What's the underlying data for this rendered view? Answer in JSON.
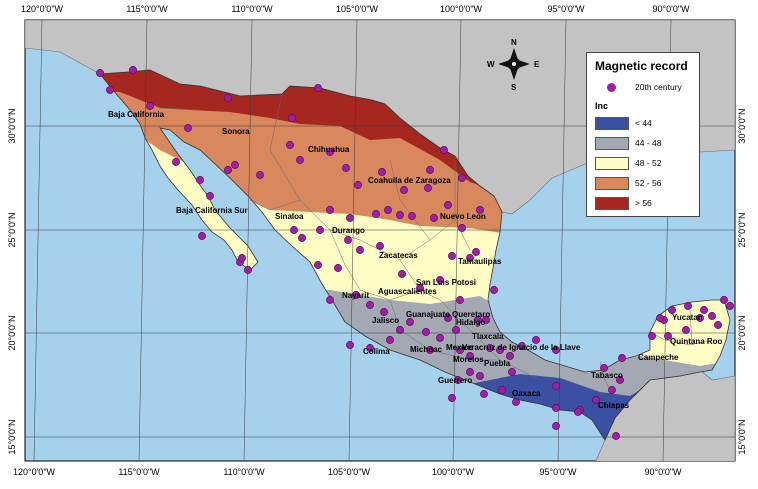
{
  "map": {
    "colors": {
      "ocean": "#a6d1ec",
      "land_other": "#c3c3c3",
      "border_line": "#6a6a6a",
      "grid_line": "#3a3a3a",
      "record_dot": "#a11fa6",
      "record_dot_outline": "#5b0d60"
    },
    "x_ticks": [
      "120°0'0\"W",
      "115°0'0\"W",
      "110°0'0\"W",
      "105°0'0\"W",
      "100°0'0\"W",
      "95°0'0\"W",
      "90°0'0\"W"
    ],
    "y_ticks": [
      "30°0'0\"N",
      "25°0'0\"N",
      "20°0'0\"N",
      "15°0'0\"N"
    ],
    "states": [
      {
        "name": "Baja California"
      },
      {
        "name": "Sonora"
      },
      {
        "name": "Chihuahua"
      },
      {
        "name": "Coahuila de Zaragoza"
      },
      {
        "name": "Nuevo Leon"
      },
      {
        "name": "Baja California Sur"
      },
      {
        "name": "Sinaloa"
      },
      {
        "name": "Durango"
      },
      {
        "name": "Zacatecas"
      },
      {
        "name": "Tamaulipas"
      },
      {
        "name": "San Luis Potosi"
      },
      {
        "name": "Aguascalientes"
      },
      {
        "name": "Nayarit"
      },
      {
        "name": "Jalisco"
      },
      {
        "name": "Guanajuato"
      },
      {
        "name": "Queretaro"
      },
      {
        "name": "Hidalgo"
      },
      {
        "name": "Colima"
      },
      {
        "name": "Michoac"
      },
      {
        "name": "Tlaxcala"
      },
      {
        "name": "Mexico"
      },
      {
        "name": "Veracruz de Ignacio de la Llave"
      },
      {
        "name": "Morelos"
      },
      {
        "name": "Puebla"
      },
      {
        "name": "Guerrero"
      },
      {
        "name": "Oaxaca"
      },
      {
        "name": "Tabasco"
      },
      {
        "name": "Chiapas"
      },
      {
        "name": "Campeche"
      },
      {
        "name": "Yucatan"
      },
      {
        "name": "Quintana Roo"
      }
    ],
    "compass": {
      "n": "N",
      "s": "S",
      "e": "E",
      "w": "W"
    },
    "legend": {
      "title": "Magnetic record",
      "point_label": "20th century",
      "field": "Inc",
      "classes": [
        {
          "label": "< 44",
          "color": "#3b4fa3"
        },
        {
          "label": "44 - 48",
          "color": "#a3a8b2"
        },
        {
          "label": "48 - 52",
          "color": "#fdfdc4"
        },
        {
          "label": "52 - 56",
          "color": "#d8885c"
        },
        {
          "label": "> 56",
          "color": "#a62720"
        }
      ]
    }
  }
}
